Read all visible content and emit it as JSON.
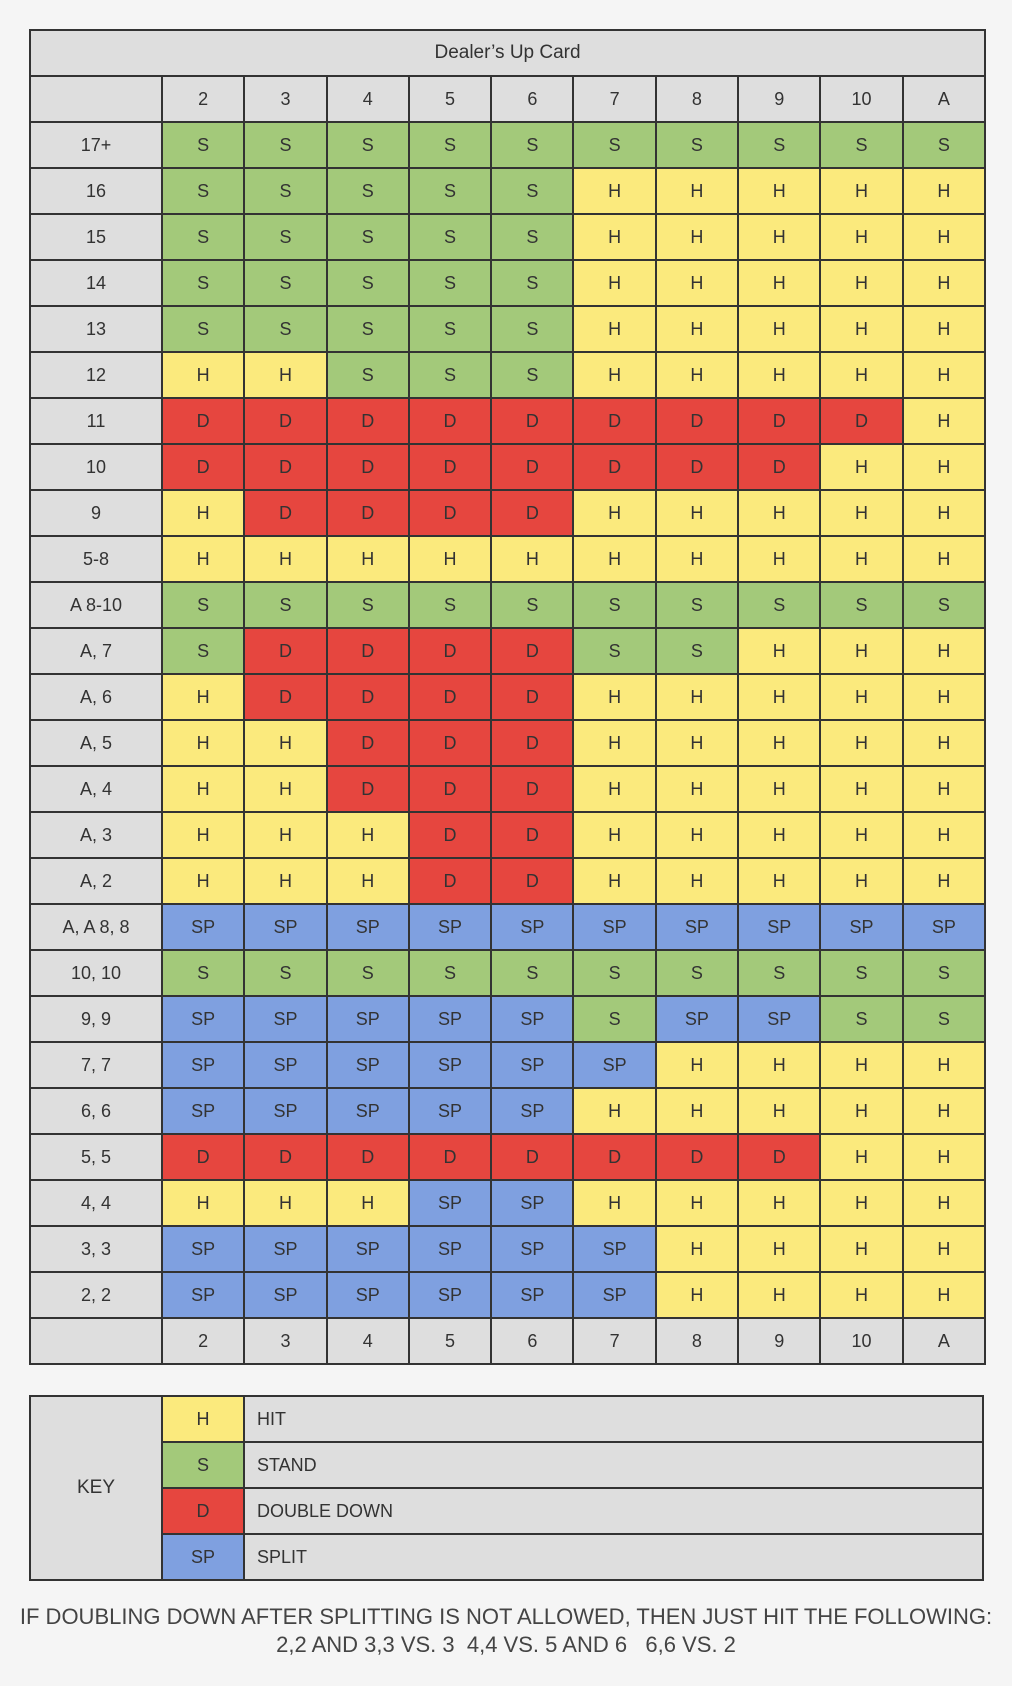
{
  "table_title": "Dealer’s Up Card",
  "dealer_cards": [
    "2",
    "3",
    "4",
    "5",
    "6",
    "7",
    "8",
    "9",
    "10",
    "A"
  ],
  "rows": [
    {
      "label": "17+",
      "actions": [
        "S",
        "S",
        "S",
        "S",
        "S",
        "S",
        "S",
        "S",
        "S",
        "S"
      ]
    },
    {
      "label": "16",
      "actions": [
        "S",
        "S",
        "S",
        "S",
        "S",
        "H",
        "H",
        "H",
        "H",
        "H"
      ]
    },
    {
      "label": "15",
      "actions": [
        "S",
        "S",
        "S",
        "S",
        "S",
        "H",
        "H",
        "H",
        "H",
        "H"
      ]
    },
    {
      "label": "14",
      "actions": [
        "S",
        "S",
        "S",
        "S",
        "S",
        "H",
        "H",
        "H",
        "H",
        "H"
      ]
    },
    {
      "label": "13",
      "actions": [
        "S",
        "S",
        "S",
        "S",
        "S",
        "H",
        "H",
        "H",
        "H",
        "H"
      ]
    },
    {
      "label": "12",
      "actions": [
        "H",
        "H",
        "S",
        "S",
        "S",
        "H",
        "H",
        "H",
        "H",
        "H"
      ]
    },
    {
      "label": "11",
      "actions": [
        "D",
        "D",
        "D",
        "D",
        "D",
        "D",
        "D",
        "D",
        "D",
        "H"
      ]
    },
    {
      "label": "10",
      "actions": [
        "D",
        "D",
        "D",
        "D",
        "D",
        "D",
        "D",
        "D",
        "H",
        "H"
      ]
    },
    {
      "label": "9",
      "actions": [
        "H",
        "D",
        "D",
        "D",
        "D",
        "H",
        "H",
        "H",
        "H",
        "H"
      ]
    },
    {
      "label": "5-8",
      "actions": [
        "H",
        "H",
        "H",
        "H",
        "H",
        "H",
        "H",
        "H",
        "H",
        "H"
      ]
    },
    {
      "label": "A 8-10",
      "actions": [
        "S",
        "S",
        "S",
        "S",
        "S",
        "S",
        "S",
        "S",
        "S",
        "S"
      ]
    },
    {
      "label": "A, 7",
      "actions": [
        "S",
        "D",
        "D",
        "D",
        "D",
        "S",
        "S",
        "H",
        "H",
        "H"
      ]
    },
    {
      "label": "A, 6",
      "actions": [
        "H",
        "D",
        "D",
        "D",
        "D",
        "H",
        "H",
        "H",
        "H",
        "H"
      ]
    },
    {
      "label": "A, 5",
      "actions": [
        "H",
        "H",
        "D",
        "D",
        "D",
        "H",
        "H",
        "H",
        "H",
        "H"
      ]
    },
    {
      "label": "A, 4",
      "actions": [
        "H",
        "H",
        "D",
        "D",
        "D",
        "H",
        "H",
        "H",
        "H",
        "H"
      ]
    },
    {
      "label": "A, 3",
      "actions": [
        "H",
        "H",
        "H",
        "D",
        "D",
        "H",
        "H",
        "H",
        "H",
        "H"
      ]
    },
    {
      "label": "A, 2",
      "actions": [
        "H",
        "H",
        "H",
        "D",
        "D",
        "H",
        "H",
        "H",
        "H",
        "H"
      ]
    },
    {
      "label": "A, A  8, 8",
      "actions": [
        "SP",
        "SP",
        "SP",
        "SP",
        "SP",
        "SP",
        "SP",
        "SP",
        "SP",
        "SP"
      ]
    },
    {
      "label": "10, 10",
      "actions": [
        "S",
        "S",
        "S",
        "S",
        "S",
        "S",
        "S",
        "S",
        "S",
        "S"
      ]
    },
    {
      "label": "9, 9",
      "actions": [
        "SP",
        "SP",
        "SP",
        "SP",
        "SP",
        "S",
        "SP",
        "SP",
        "S",
        "S"
      ]
    },
    {
      "label": "7, 7",
      "actions": [
        "SP",
        "SP",
        "SP",
        "SP",
        "SP",
        "SP",
        "H",
        "H",
        "H",
        "H"
      ]
    },
    {
      "label": "6, 6",
      "actions": [
        "SP",
        "SP",
        "SP",
        "SP",
        "SP",
        "H",
        "H",
        "H",
        "H",
        "H"
      ]
    },
    {
      "label": "5, 5",
      "actions": [
        "D",
        "D",
        "D",
        "D",
        "D",
        "D",
        "D",
        "D",
        "H",
        "H"
      ]
    },
    {
      "label": "4, 4",
      "actions": [
        "H",
        "H",
        "H",
        "SP",
        "SP",
        "H",
        "H",
        "H",
        "H",
        "H"
      ]
    },
    {
      "label": "3, 3",
      "actions": [
        "SP",
        "SP",
        "SP",
        "SP",
        "SP",
        "SP",
        "H",
        "H",
        "H",
        "H"
      ]
    },
    {
      "label": "2, 2",
      "actions": [
        "SP",
        "SP",
        "SP",
        "SP",
        "SP",
        "SP",
        "H",
        "H",
        "H",
        "H"
      ]
    }
  ],
  "key": {
    "label": "KEY",
    "items": [
      {
        "code": "H",
        "desc": "HIT"
      },
      {
        "code": "S",
        "desc": "STAND"
      },
      {
        "code": "D",
        "desc": "DOUBLE DOWN"
      },
      {
        "code": "SP",
        "desc": "SPLIT"
      }
    ]
  },
  "colors": {
    "H": "#fbea7d",
    "S": "#a3c97a",
    "D": "#e6463f",
    "SP": "#7fa0e0",
    "header_gray": "#dedede"
  },
  "footnote": {
    "line1": "IF DOUBLING DOWN AFTER SPLITTING IS NOT ALLOWED, THEN JUST HIT THE FOLLOWING:",
    "line2": "2,2 AND 3,3 VS. 3  4,4 VS. 5 AND 6   6,6 VS. 2"
  }
}
